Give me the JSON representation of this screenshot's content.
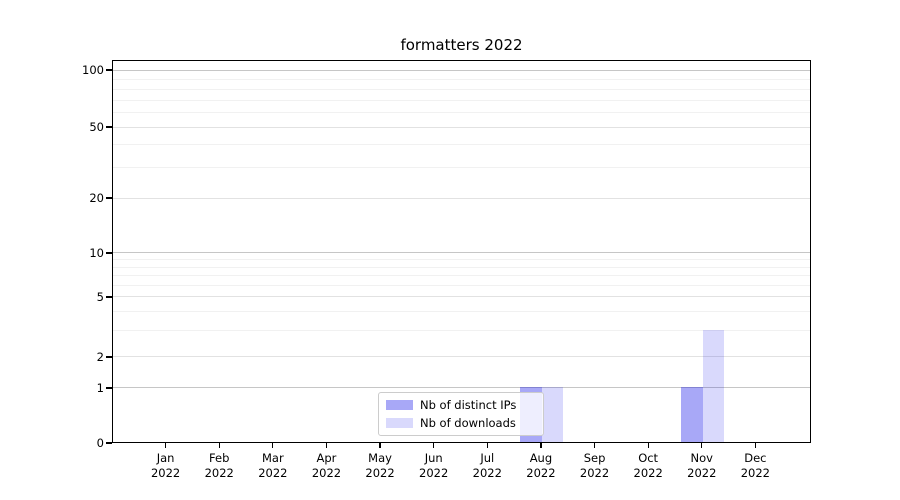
{
  "chart_data": {
    "type": "bar",
    "title": "formatters 2022",
    "xlabel": "",
    "ylabel": "",
    "yscale": "symlog",
    "ylim": [
      0,
      113
    ],
    "grid": "both (major darker, minor faint)",
    "yticks": [
      0,
      1,
      2,
      5,
      10,
      20,
      50,
      100
    ],
    "major_decade_ticks": [
      1,
      10,
      100
    ],
    "minor_gridlines": [
      3,
      4,
      6,
      7,
      8,
      9,
      30,
      40,
      60,
      70,
      80,
      90
    ],
    "categories": [
      "Jan 2022",
      "Feb 2022",
      "Mar 2022",
      "Apr 2022",
      "May 2022",
      "Jun 2022",
      "Jul 2022",
      "Aug 2022",
      "Sep 2022",
      "Oct 2022",
      "Nov 2022",
      "Dec 2022"
    ],
    "series": [
      {
        "name": "Nb of distinct IPs",
        "color": "rgba(0,0,232,0.34)",
        "color_solid_hex": "#a8a8f8",
        "values": [
          0,
          0,
          0,
          0,
          0,
          0,
          0,
          1,
          0,
          0,
          1,
          0
        ]
      },
      {
        "name": "Nb of downloads",
        "color": "rgba(0,0,232,0.15)",
        "color_solid_hex": "#d8d8f8",
        "values": [
          0,
          0,
          0,
          0,
          0,
          0,
          0,
          1,
          0,
          0,
          3,
          0
        ]
      }
    ],
    "legend_position": "lower center"
  },
  "legend": {
    "items": [
      {
        "label": "Nb of distinct IPs",
        "color": "rgba(0,0,232,0.34)"
      },
      {
        "label": "Nb of downloads",
        "color": "rgba(0,0,232,0.15)"
      }
    ]
  }
}
